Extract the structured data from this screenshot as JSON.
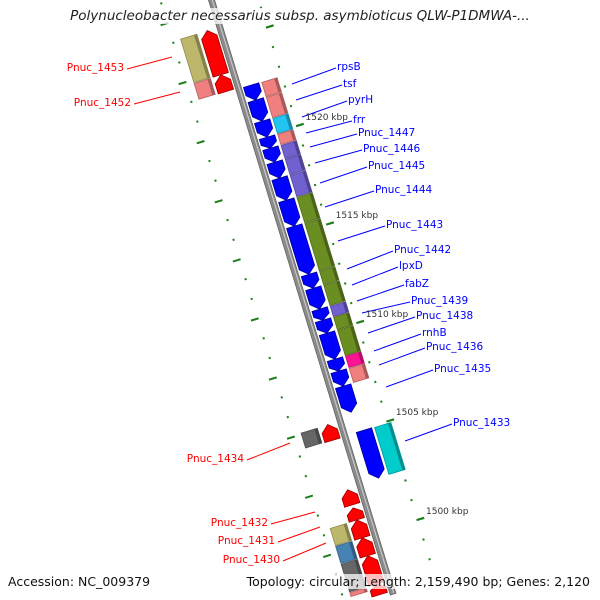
{
  "title": "Polynucleobacter necessarius subsp. asymbioticus QLW-P1DMWA-...",
  "footer": {
    "accession": "Accession: NC_009379",
    "summary": "Topology: circular; Length: 2,159,490 bp; Genes: 2,120"
  },
  "colors": {
    "forward_strand": "#0000ff",
    "reverse_strand": "#ff0000",
    "backbone": "#8a8a8a",
    "ticks": "#1a7f1a"
  },
  "ticks": {
    "major": [
      {
        "kbp": 1520,
        "label": "1520 kbp"
      },
      {
        "kbp": 1515,
        "label": "1515 kbp"
      },
      {
        "kbp": 1510,
        "label": "1510 kbp"
      },
      {
        "kbp": 1505,
        "label": "1505 kbp"
      },
      {
        "kbp": 1500,
        "label": "1500 kbp"
      }
    ]
  },
  "genes": [
    {
      "name": "rpsB",
      "strand": "+",
      "start": 1522.54,
      "end": 1521.78,
      "cog": "#f08080"
    },
    {
      "name": "tsf",
      "strand": "+",
      "start": 1521.78,
      "end": 1520.71,
      "cog": "#f08080"
    },
    {
      "name": "pyrH",
      "strand": "+",
      "start": 1520.71,
      "end": 1519.9,
      "cog": "#22c4f0"
    },
    {
      "name": "frr",
      "strand": "+",
      "start": 1519.9,
      "end": 1519.34,
      "cog": "#f08080"
    },
    {
      "name": "Pnuc_1447",
      "strand": "+",
      "start": 1519.34,
      "end": 1518.63,
      "cog": "#7060d0"
    },
    {
      "name": "Pnuc_1446",
      "strand": "+",
      "start": 1518.63,
      "end": 1517.82,
      "cog": "#7060d0"
    },
    {
      "name": "Pnuc_1445",
      "strand": "+",
      "start": 1517.82,
      "end": 1516.7,
      "cog": "#7060d0"
    },
    {
      "name": "Pnuc_1444",
      "strand": "+",
      "start": 1516.7,
      "end": 1515.38,
      "cog": "#6b8e23"
    },
    {
      "name": "Pnuc_1443",
      "strand": "+",
      "start": 1515.38,
      "end": 1512.94,
      "cog": "#6b8e23"
    },
    {
      "name": "Pnuc_1442",
      "strand": "+",
      "start": 1512.94,
      "end": 1512.23,
      "cog": "#6b8e23"
    },
    {
      "name": "lpxD",
      "strand": "+",
      "start": 1512.23,
      "end": 1511.17,
      "cog": "#6b8e23"
    },
    {
      "name": "fabZ",
      "strand": "+",
      "start": 1511.17,
      "end": 1510.61,
      "cog": "#7060d0"
    },
    {
      "name": "Pnuc_1439",
      "strand": "+",
      "start": 1510.61,
      "end": 1509.95,
      "cog": "#6b8e23"
    },
    {
      "name": "Pnuc_1438",
      "strand": "+",
      "start": 1509.95,
      "end": 1508.63,
      "cog": "#6b8e23"
    },
    {
      "name": "rnhB",
      "strand": "+",
      "start": 1508.63,
      "end": 1508.02,
      "cog": "#ff1493"
    },
    {
      "name": "Pnuc_1436",
      "strand": "+",
      "start": 1508.02,
      "end": 1507.26,
      "cog": "#f08080"
    },
    {
      "name": "Pnuc_1435",
      "strand": "+",
      "start": 1507.26,
      "end": 1505.94,
      "cog": ""
    },
    {
      "name": "Pnuc_1433",
      "strand": "+",
      "start": 1504.92,
      "end": 1502.49,
      "cog": "#00cccc"
    },
    {
      "name": "Pnuc_1453",
      "strand": "-",
      "start": 1525.7,
      "end": 1523.45,
      "cog": "#bdb76b"
    },
    {
      "name": "Pnuc_1452",
      "strand": "-",
      "start": 1523.45,
      "end": 1522.6,
      "cog": "#f08080"
    },
    {
      "name": "Pnuc_1434",
      "strand": "-",
      "start": 1505.7,
      "end": 1504.9,
      "cog": "#666666"
    },
    {
      "name": "",
      "strand": "-",
      "start": 1502.39,
      "end": 1501.62,
      "cog": ""
    },
    {
      "name": "",
      "strand": "-",
      "start": 1501.47,
      "end": 1500.86,
      "cog": ""
    },
    {
      "name": "Pnuc_1432",
      "strand": "-",
      "start": 1500.86,
      "end": 1499.95,
      "cog": "#bdb76b"
    },
    {
      "name": "Pnuc_1431",
      "strand": "-",
      "start": 1499.95,
      "end": 1499.04,
      "cog": "#4682b4"
    },
    {
      "name": "Pnuc_1430",
      "strand": "-",
      "start": 1499.04,
      "end": 1497.6,
      "cog": "#666666"
    },
    {
      "name": "",
      "strand": "-",
      "start": 1497.6,
      "end": 1496.2,
      "cog": "#f08080"
    }
  ]
}
